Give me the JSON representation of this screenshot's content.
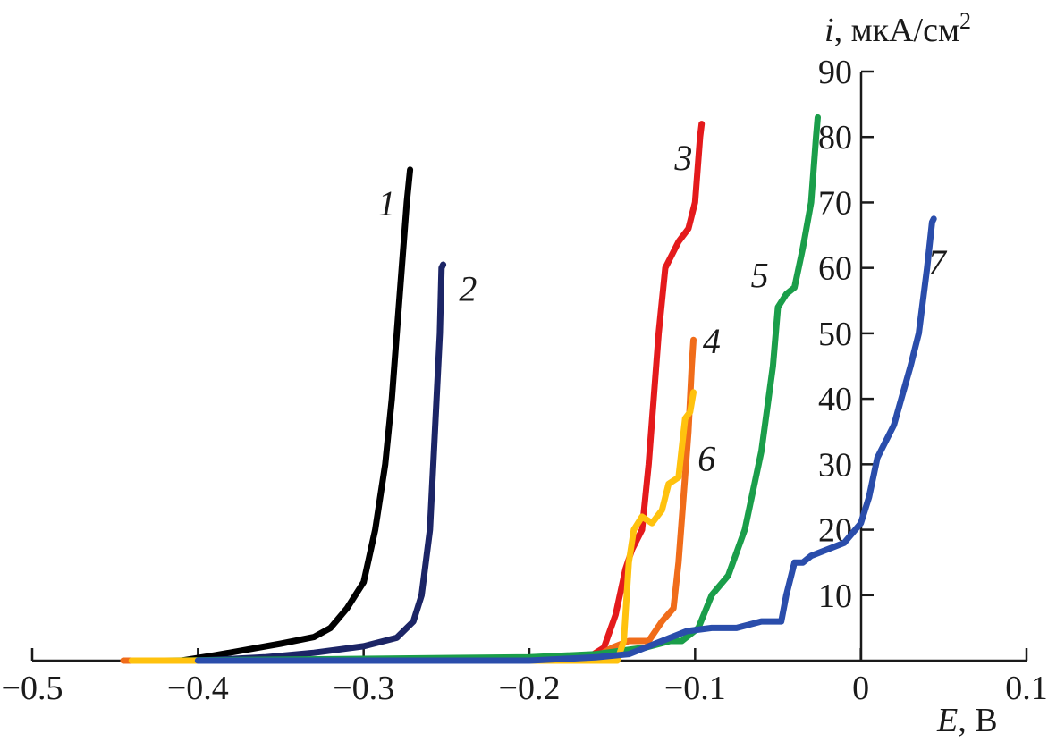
{
  "chart_data": {
    "type": "line",
    "title": "",
    "xlabel": {
      "var": "E",
      "unit": ", В"
    },
    "ylabel": {
      "var": "i",
      "unit": ", мкА/см",
      "sup": "2"
    },
    "xlim": [
      -0.5,
      0.1
    ],
    "ylim": [
      0,
      90
    ],
    "x_ticks": [
      {
        "value": -0.5,
        "label": "−0.5"
      },
      {
        "value": -0.4,
        "label": "−0.4"
      },
      {
        "value": -0.3,
        "label": "−0.3"
      },
      {
        "value": -0.2,
        "label": "−0.2"
      },
      {
        "value": -0.1,
        "label": "−0.1"
      },
      {
        "value": 0,
        "label": "0"
      },
      {
        "value": 0.1,
        "label": "0.1"
      }
    ],
    "y_ticks": [
      {
        "value": 10,
        "label": "10"
      },
      {
        "value": 20,
        "label": "20"
      },
      {
        "value": 30,
        "label": "30"
      },
      {
        "value": 40,
        "label": "40"
      },
      {
        "value": 50,
        "label": "50"
      },
      {
        "value": 60,
        "label": "60"
      },
      {
        "value": 70,
        "label": "70"
      },
      {
        "value": 80,
        "label": "80"
      },
      {
        "value": 90,
        "label": "90"
      }
    ],
    "grid": false,
    "legend": "none",
    "series": [
      {
        "name": "1",
        "color": "#000000",
        "label_at": [
          -0.286,
          68
        ],
        "points": [
          [
            -0.43,
            0
          ],
          [
            -0.41,
            0
          ],
          [
            -0.39,
            0.8
          ],
          [
            -0.37,
            1.7
          ],
          [
            -0.35,
            2.6
          ],
          [
            -0.33,
            3.6
          ],
          [
            -0.32,
            5
          ],
          [
            -0.31,
            8
          ],
          [
            -0.3,
            12
          ],
          [
            -0.293,
            20
          ],
          [
            -0.287,
            30
          ],
          [
            -0.283,
            40
          ],
          [
            -0.28,
            50
          ],
          [
            -0.277,
            60
          ],
          [
            -0.274,
            70
          ],
          [
            -0.272,
            75
          ]
        ]
      },
      {
        "name": "2",
        "color": "#1c2566",
        "label_at": [
          -0.237,
          55
        ],
        "points": [
          [
            -0.4,
            0
          ],
          [
            -0.36,
            0.5
          ],
          [
            -0.33,
            1.2
          ],
          [
            -0.3,
            2.2
          ],
          [
            -0.28,
            3.5
          ],
          [
            -0.27,
            6
          ],
          [
            -0.265,
            10
          ],
          [
            -0.26,
            20
          ],
          [
            -0.258,
            30
          ],
          [
            -0.256,
            40
          ],
          [
            -0.254,
            50
          ],
          [
            -0.253,
            60
          ],
          [
            -0.252,
            60.5
          ]
        ]
      },
      {
        "name": "3",
        "color": "#e41a1c",
        "label_at": [
          -0.107,
          75
        ],
        "points": [
          [
            -0.44,
            0
          ],
          [
            -0.2,
            0
          ],
          [
            -0.165,
            0.4
          ],
          [
            -0.155,
            2
          ],
          [
            -0.148,
            7
          ],
          [
            -0.142,
            14
          ],
          [
            -0.138,
            17
          ],
          [
            -0.132,
            20
          ],
          [
            -0.128,
            30
          ],
          [
            -0.125,
            40
          ],
          [
            -0.122,
            50
          ],
          [
            -0.118,
            60
          ],
          [
            -0.11,
            64
          ],
          [
            -0.104,
            66
          ],
          [
            -0.1,
            70
          ],
          [
            -0.097,
            80
          ],
          [
            -0.096,
            82
          ]
        ]
      },
      {
        "name": "4",
        "color": "#f06c1a",
        "label_at": [
          -0.09,
          47
        ],
        "points": [
          [
            -0.445,
            0
          ],
          [
            -0.2,
            0
          ],
          [
            -0.16,
            0.5
          ],
          [
            -0.15,
            2
          ],
          [
            -0.14,
            3
          ],
          [
            -0.128,
            3
          ],
          [
            -0.12,
            6
          ],
          [
            -0.113,
            8
          ],
          [
            -0.11,
            15
          ],
          [
            -0.107,
            25
          ],
          [
            -0.104,
            35
          ],
          [
            -0.102,
            45
          ],
          [
            -0.101,
            49
          ]
        ]
      },
      {
        "name": "5",
        "color": "#1a9e4a",
        "label_at": [
          -0.061,
          57
        ],
        "points": [
          [
            -0.42,
            0
          ],
          [
            -0.2,
            0.5
          ],
          [
            -0.16,
            1
          ],
          [
            -0.13,
            2
          ],
          [
            -0.115,
            3
          ],
          [
            -0.108,
            3
          ],
          [
            -0.098,
            5
          ],
          [
            -0.09,
            10
          ],
          [
            -0.08,
            13
          ],
          [
            -0.07,
            20
          ],
          [
            -0.06,
            32
          ],
          [
            -0.053,
            45
          ],
          [
            -0.05,
            54
          ],
          [
            -0.045,
            56
          ],
          [
            -0.04,
            57
          ],
          [
            -0.035,
            63
          ],
          [
            -0.03,
            70
          ],
          [
            -0.027,
            80
          ],
          [
            -0.026,
            83
          ]
        ]
      },
      {
        "name": "6",
        "color": "#ffc20e",
        "label_at": [
          -0.093,
          29
        ],
        "points": [
          [
            -0.44,
            0
          ],
          [
            -0.2,
            0
          ],
          [
            -0.147,
            0
          ],
          [
            -0.143,
            3
          ],
          [
            -0.14,
            15
          ],
          [
            -0.137,
            20
          ],
          [
            -0.132,
            22
          ],
          [
            -0.126,
            21
          ],
          [
            -0.12,
            23
          ],
          [
            -0.116,
            27
          ],
          [
            -0.11,
            28
          ],
          [
            -0.106,
            37
          ],
          [
            -0.103,
            38
          ],
          [
            -0.101,
            41
          ]
        ]
      },
      {
        "name": "7",
        "color": "#2a4dab",
        "label_at": [
          0.046,
          59
        ],
        "points": [
          [
            -0.4,
            0
          ],
          [
            -0.2,
            0
          ],
          [
            -0.16,
            0.5
          ],
          [
            -0.14,
            1
          ],
          [
            -0.12,
            3
          ],
          [
            -0.105,
            4.5
          ],
          [
            -0.09,
            5
          ],
          [
            -0.075,
            5
          ],
          [
            -0.06,
            6
          ],
          [
            -0.048,
            6
          ],
          [
            -0.045,
            10
          ],
          [
            -0.04,
            15
          ],
          [
            -0.035,
            15
          ],
          [
            -0.03,
            16
          ],
          [
            -0.02,
            17
          ],
          [
            -0.01,
            18
          ],
          [
            0,
            21
          ],
          [
            0.005,
            25
          ],
          [
            0.01,
            31
          ],
          [
            0.02,
            36
          ],
          [
            0.03,
            45
          ],
          [
            0.035,
            50
          ],
          [
            0.04,
            60
          ],
          [
            0.043,
            67
          ],
          [
            0.044,
            67.5
          ]
        ]
      }
    ]
  }
}
